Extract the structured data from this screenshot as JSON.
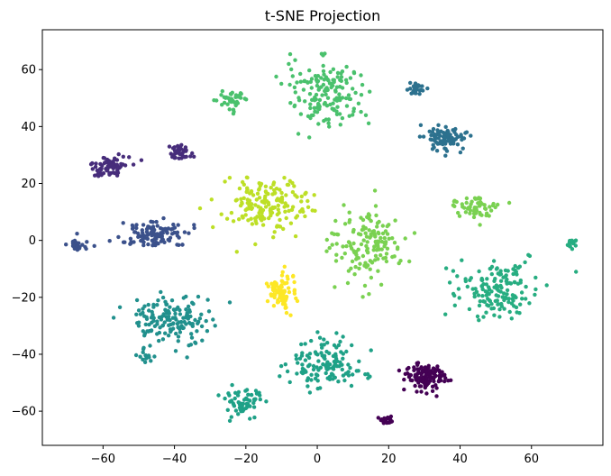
{
  "chart_data": {
    "type": "scatter",
    "title": "t-SNE Projection",
    "xlabel": "",
    "ylabel": "",
    "xlim": [
      -77,
      80
    ],
    "ylim": [
      -72,
      74
    ],
    "xticks": [
      -60,
      -40,
      -20,
      0,
      20,
      40,
      60
    ],
    "yticks": [
      -60,
      -40,
      -20,
      0,
      20,
      40,
      60
    ],
    "xtick_labels": [
      "−60",
      "−40",
      "−20",
      "0",
      "20",
      "40",
      "60"
    ],
    "ytick_labels": [
      "−60",
      "−40",
      "−20",
      "0",
      "20",
      "40",
      "60"
    ],
    "grid": false,
    "legend": null,
    "colormap": "viridis",
    "clusters": [
      {
        "label": 0,
        "color": "#440154",
        "blobs": [
          {
            "cx": 30,
            "cy": -48,
            "sx": 3.0,
            "sy": 2.5,
            "n": 120
          },
          {
            "cx": 19.5,
            "cy": -63,
            "sx": 1.2,
            "sy": 0.8,
            "n": 25
          }
        ]
      },
      {
        "label": 1,
        "color": "#472d7b",
        "blobs": [
          {
            "cx": -58,
            "cy": 26,
            "sx": 2.5,
            "sy": 2.0,
            "n": 70
          },
          {
            "cx": -38,
            "cy": 31,
            "sx": 1.5,
            "sy": 1.8,
            "n": 35
          }
        ]
      },
      {
        "label": 2,
        "color": "#3b518b",
        "blobs": [
          {
            "cx": -45,
            "cy": 2,
            "sx": 5.0,
            "sy": 2.5,
            "n": 110
          },
          {
            "cx": -67,
            "cy": -2,
            "sx": 1.5,
            "sy": 1.5,
            "n": 25
          }
        ]
      },
      {
        "label": 3,
        "color": "#2c718e",
        "blobs": [
          {
            "cx": 36,
            "cy": 36,
            "sx": 3.0,
            "sy": 2.5,
            "n": 90
          },
          {
            "cx": 28,
            "cy": 53,
            "sx": 1.5,
            "sy": 1.0,
            "n": 30
          }
        ]
      },
      {
        "label": 4,
        "color": "#21908d",
        "blobs": [
          {
            "cx": -42,
            "cy": -28,
            "sx": 6.0,
            "sy": 4.0,
            "n": 150
          },
          {
            "cx": -48,
            "cy": -40,
            "sx": 1.0,
            "sy": 2.0,
            "n": 15
          }
        ]
      },
      {
        "label": 5,
        "color": "#27ad81",
        "blobs": [
          {
            "cx": 50,
            "cy": -17,
            "sx": 6.0,
            "sy": 5.0,
            "n": 150
          },
          {
            "cx": 71,
            "cy": -1,
            "sx": 0.8,
            "sy": 1.2,
            "n": 15
          }
        ]
      },
      {
        "label": 6,
        "color": "#1fa187",
        "blobs": [
          {
            "cx": 2,
            "cy": -44,
            "sx": 5.5,
            "sy": 4.0,
            "n": 130
          },
          {
            "cx": -21,
            "cy": -56,
            "sx": 3.0,
            "sy": 3.0,
            "n": 60
          }
        ]
      },
      {
        "label": 7,
        "color": "#4ac16d",
        "blobs": [
          {
            "cx": 3,
            "cy": 52,
            "sx": 5.0,
            "sy": 6.0,
            "n": 160
          },
          {
            "cx": -24,
            "cy": 49,
            "sx": 2.0,
            "sy": 2.0,
            "n": 40
          }
        ]
      },
      {
        "label": 8,
        "color": "#7ad151",
        "blobs": [
          {
            "cx": 14,
            "cy": -2,
            "sx": 5.0,
            "sy": 6.0,
            "n": 150
          },
          {
            "cx": 44,
            "cy": 11,
            "sx": 3.0,
            "sy": 2.0,
            "n": 60
          }
        ]
      },
      {
        "label": 9,
        "color": "#bddf26",
        "blobs": [
          {
            "cx": -14,
            "cy": 13,
            "sx": 6.0,
            "sy": 5.0,
            "n": 170
          }
        ]
      },
      {
        "label": 10,
        "color": "#fde725",
        "blobs": [
          {
            "cx": -10,
            "cy": -18,
            "sx": 2.0,
            "sy": 3.0,
            "n": 80
          }
        ]
      }
    ]
  }
}
